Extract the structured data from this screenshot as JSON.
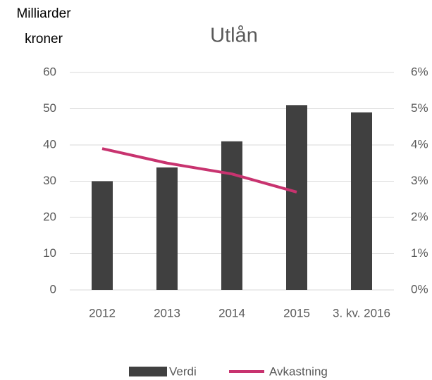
{
  "chart_data": {
    "type": "bar",
    "title": "Utlån",
    "ylabel": [
      "Milliarder",
      "kroner"
    ],
    "categories": [
      "2012",
      "2013",
      "2014",
      "2015",
      "3. kv. 2016"
    ],
    "series": [
      {
        "name": "Verdi",
        "type": "bar",
        "color": "#404040",
        "values": [
          30,
          33.8,
          41,
          51,
          49
        ]
      },
      {
        "name": "Avkastning",
        "type": "line",
        "axis": "y2",
        "color": "#c8336f",
        "values": [
          3.9,
          3.5,
          3.2,
          2.7,
          null
        ]
      }
    ],
    "ylim": [
      0,
      60
    ],
    "yticks": [
      0,
      10,
      20,
      30,
      40,
      50,
      60
    ],
    "y2lim": [
      0,
      6
    ],
    "y2ticks": [
      {
        "value": 0,
        "label": "0%"
      },
      {
        "value": 1,
        "label": "1%"
      },
      {
        "value": 2,
        "label": "2%"
      },
      {
        "value": 3,
        "label": "3%"
      },
      {
        "value": 4,
        "label": "4%"
      },
      {
        "value": 5,
        "label": "5%"
      },
      {
        "value": 6,
        "label": "6%"
      }
    ],
    "grid": true,
    "legend": "bottom"
  }
}
